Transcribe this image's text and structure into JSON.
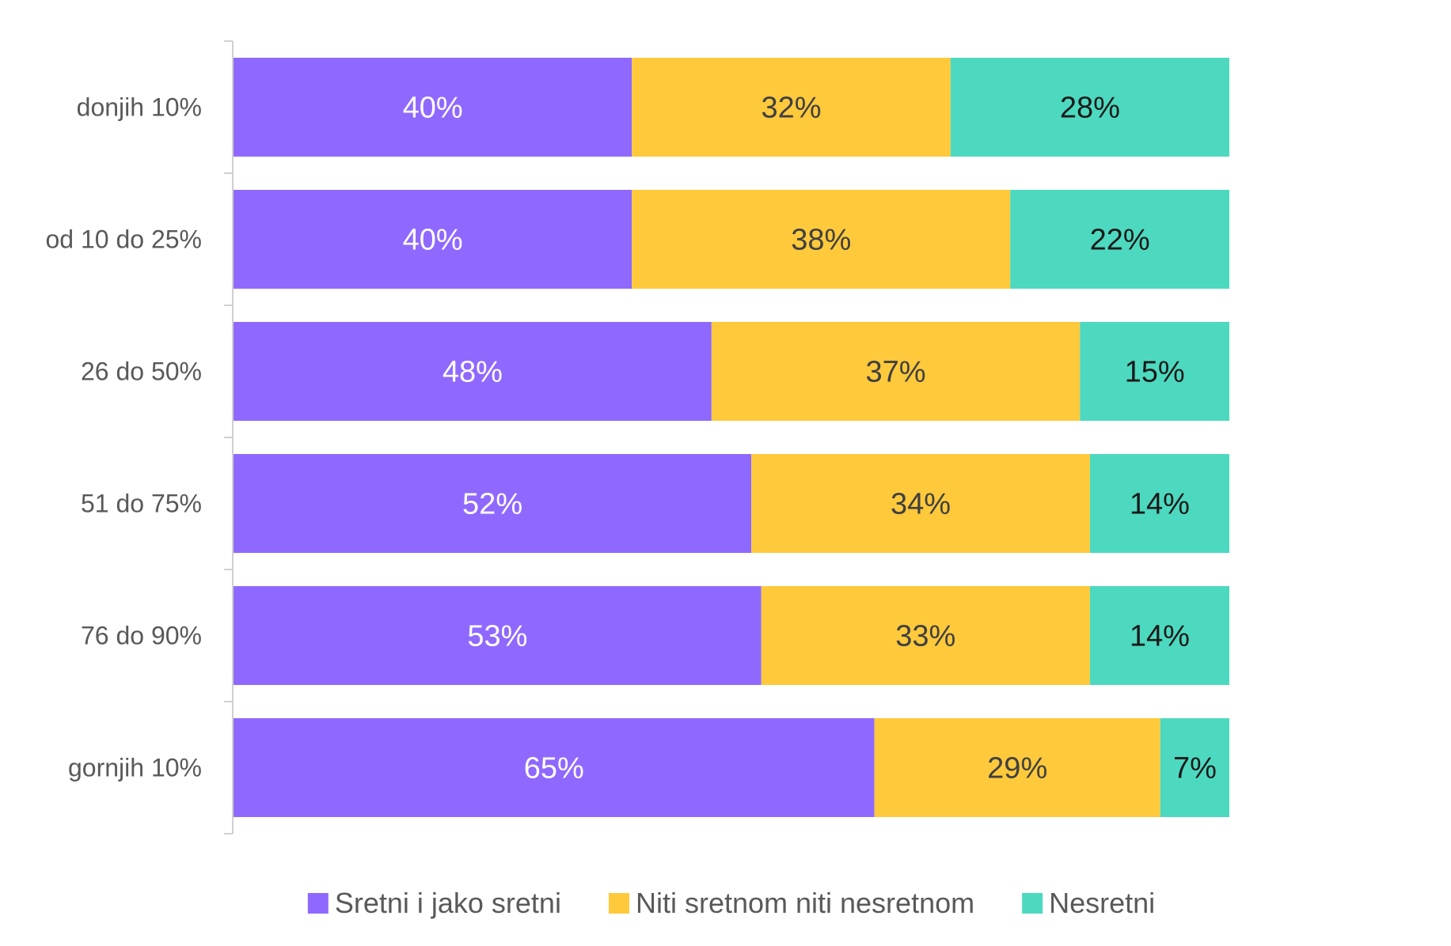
{
  "chart_data": {
    "type": "bar",
    "orientation": "horizontal",
    "stacked": "percent",
    "categories": [
      "donjih 10%",
      "od 10 do 25%",
      "26 do 50%",
      "51 do 75%",
      "76 do 90%",
      "gornjih 10%"
    ],
    "series": [
      {
        "name": "Sretni i jako sretni",
        "color": "#8F69FF",
        "label_color": "#FFFFFF",
        "values": [
          40,
          40,
          48,
          52,
          53,
          65
        ],
        "labels": [
          "40%",
          "40%",
          "48%",
          "52%",
          "53%",
          "65%"
        ]
      },
      {
        "name": "Niti sretnom niti nesretnom",
        "color": "#FFC93C",
        "label_color": "#404040",
        "values": [
          32,
          38,
          37,
          34,
          33,
          29
        ],
        "labels": [
          "32%",
          "38%",
          "37%",
          "34%",
          "33%",
          "29%"
        ]
      },
      {
        "name": "Nesretni",
        "color": "#4DD9BF",
        "label_color": "#1A1A1A",
        "values": [
          28,
          22,
          15,
          14,
          14,
          7
        ],
        "labels": [
          "28%",
          "22%",
          "15%",
          "14%",
          "14%",
          "7%"
        ]
      }
    ],
    "xlim": [
      0,
      100
    ],
    "grid": false,
    "legend": "bottom",
    "title": "",
    "xlabel": "",
    "ylabel": ""
  }
}
